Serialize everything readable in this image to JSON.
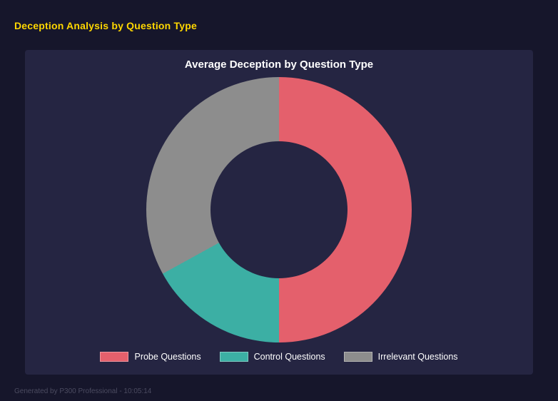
{
  "page": {
    "title": "Deception Analysis by Question Type",
    "footer": "Generated by P300 Professional - 10:05:14",
    "accent_color": "#ffd700",
    "background_color": "#16162b",
    "panel_color": "#252542"
  },
  "chart_data": {
    "type": "pie",
    "subtype": "donut",
    "title": "Average Deception by Question Type",
    "categories": [
      "Probe Questions",
      "Control Questions",
      "Irrelevant Questions"
    ],
    "values": [
      50,
      17,
      33
    ],
    "unit": "percent",
    "colors": [
      "#e4606c",
      "#3cafa4",
      "#8d8d8d"
    ],
    "legend_position": "bottom",
    "start_angle_deg": 0,
    "direction": "clockwise"
  }
}
